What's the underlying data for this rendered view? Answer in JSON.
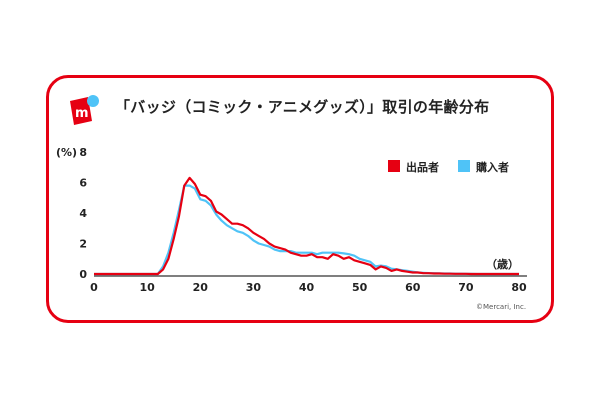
{
  "title": "「バッジ（コミック・アニメグッズ）」取引の年齢分布",
  "logo": {
    "letter": "m",
    "brand_color": "#e60012",
    "dot_color": "#4fc3f7"
  },
  "copyright": "©Mercari, Inc.",
  "chart_data": {
    "type": "line",
    "title": "「バッジ（コミック・アニメグッズ）」取引の年齢分布",
    "xlabel": "（歳）",
    "ylabel": "(%)",
    "xlim": [
      0,
      80
    ],
    "ylim": [
      0,
      8
    ],
    "x_ticks": [
      "0",
      "10",
      "20",
      "30",
      "40",
      "50",
      "60",
      "70",
      "80"
    ],
    "y_ticks": [
      "0",
      "2",
      "4",
      "6",
      "8"
    ],
    "legend_position": "top-right",
    "grid": false,
    "x": [
      0,
      1,
      2,
      3,
      4,
      5,
      6,
      7,
      8,
      9,
      10,
      11,
      12,
      13,
      14,
      15,
      16,
      17,
      18,
      19,
      20,
      21,
      22,
      23,
      24,
      25,
      26,
      27,
      28,
      29,
      30,
      31,
      32,
      33,
      34,
      35,
      36,
      37,
      38,
      39,
      40,
      41,
      42,
      43,
      44,
      45,
      46,
      47,
      48,
      49,
      50,
      51,
      52,
      53,
      54,
      55,
      56,
      57,
      58,
      59,
      60,
      61,
      62,
      63,
      64,
      65,
      66,
      67,
      68,
      69,
      70,
      71,
      72,
      73,
      74,
      75,
      76,
      77,
      78,
      79,
      80
    ],
    "series": [
      {
        "name": "出品者",
        "color": "#e60012",
        "values": [
          0,
          0,
          0,
          0,
          0,
          0,
          0,
          0,
          0,
          0,
          0,
          0,
          0,
          0.3,
          1.0,
          2.3,
          3.8,
          5.8,
          6.3,
          5.9,
          5.2,
          5.1,
          4.8,
          4.1,
          3.9,
          3.6,
          3.3,
          3.3,
          3.2,
          3.0,
          2.7,
          2.5,
          2.3,
          2.0,
          1.8,
          1.7,
          1.6,
          1.4,
          1.3,
          1.2,
          1.2,
          1.3,
          1.1,
          1.1,
          1.0,
          1.3,
          1.2,
          1.0,
          1.1,
          0.9,
          0.8,
          0.7,
          0.6,
          0.3,
          0.5,
          0.4,
          0.2,
          0.3,
          0.2,
          0.15,
          0.1,
          0.1,
          0.05,
          0.05,
          0.03,
          0.03,
          0.02,
          0.02,
          0.01,
          0.01,
          0.01,
          0,
          0,
          0,
          0,
          0,
          0,
          0,
          0,
          0,
          0
        ]
      },
      {
        "name": "購入者",
        "color": "#4fc3f7",
        "values": [
          0,
          0,
          0,
          0,
          0,
          0,
          0,
          0,
          0,
          0,
          0,
          0,
          0,
          0.5,
          1.4,
          2.7,
          4.2,
          5.8,
          5.8,
          5.6,
          4.9,
          4.8,
          4.5,
          3.9,
          3.5,
          3.2,
          3.0,
          2.8,
          2.7,
          2.5,
          2.2,
          2.0,
          1.9,
          1.8,
          1.6,
          1.5,
          1.5,
          1.5,
          1.4,
          1.4,
          1.4,
          1.4,
          1.3,
          1.4,
          1.4,
          1.4,
          1.4,
          1.35,
          1.3,
          1.2,
          1.0,
          0.9,
          0.8,
          0.5,
          0.55,
          0.5,
          0.35,
          0.3,
          0.25,
          0.2,
          0.15,
          0.1,
          0.08,
          0.06,
          0.05,
          0.04,
          0.03,
          0.03,
          0.02,
          0.02,
          0.01,
          0.01,
          0,
          0,
          0,
          0,
          0,
          0,
          0,
          0,
          0
        ]
      }
    ]
  }
}
